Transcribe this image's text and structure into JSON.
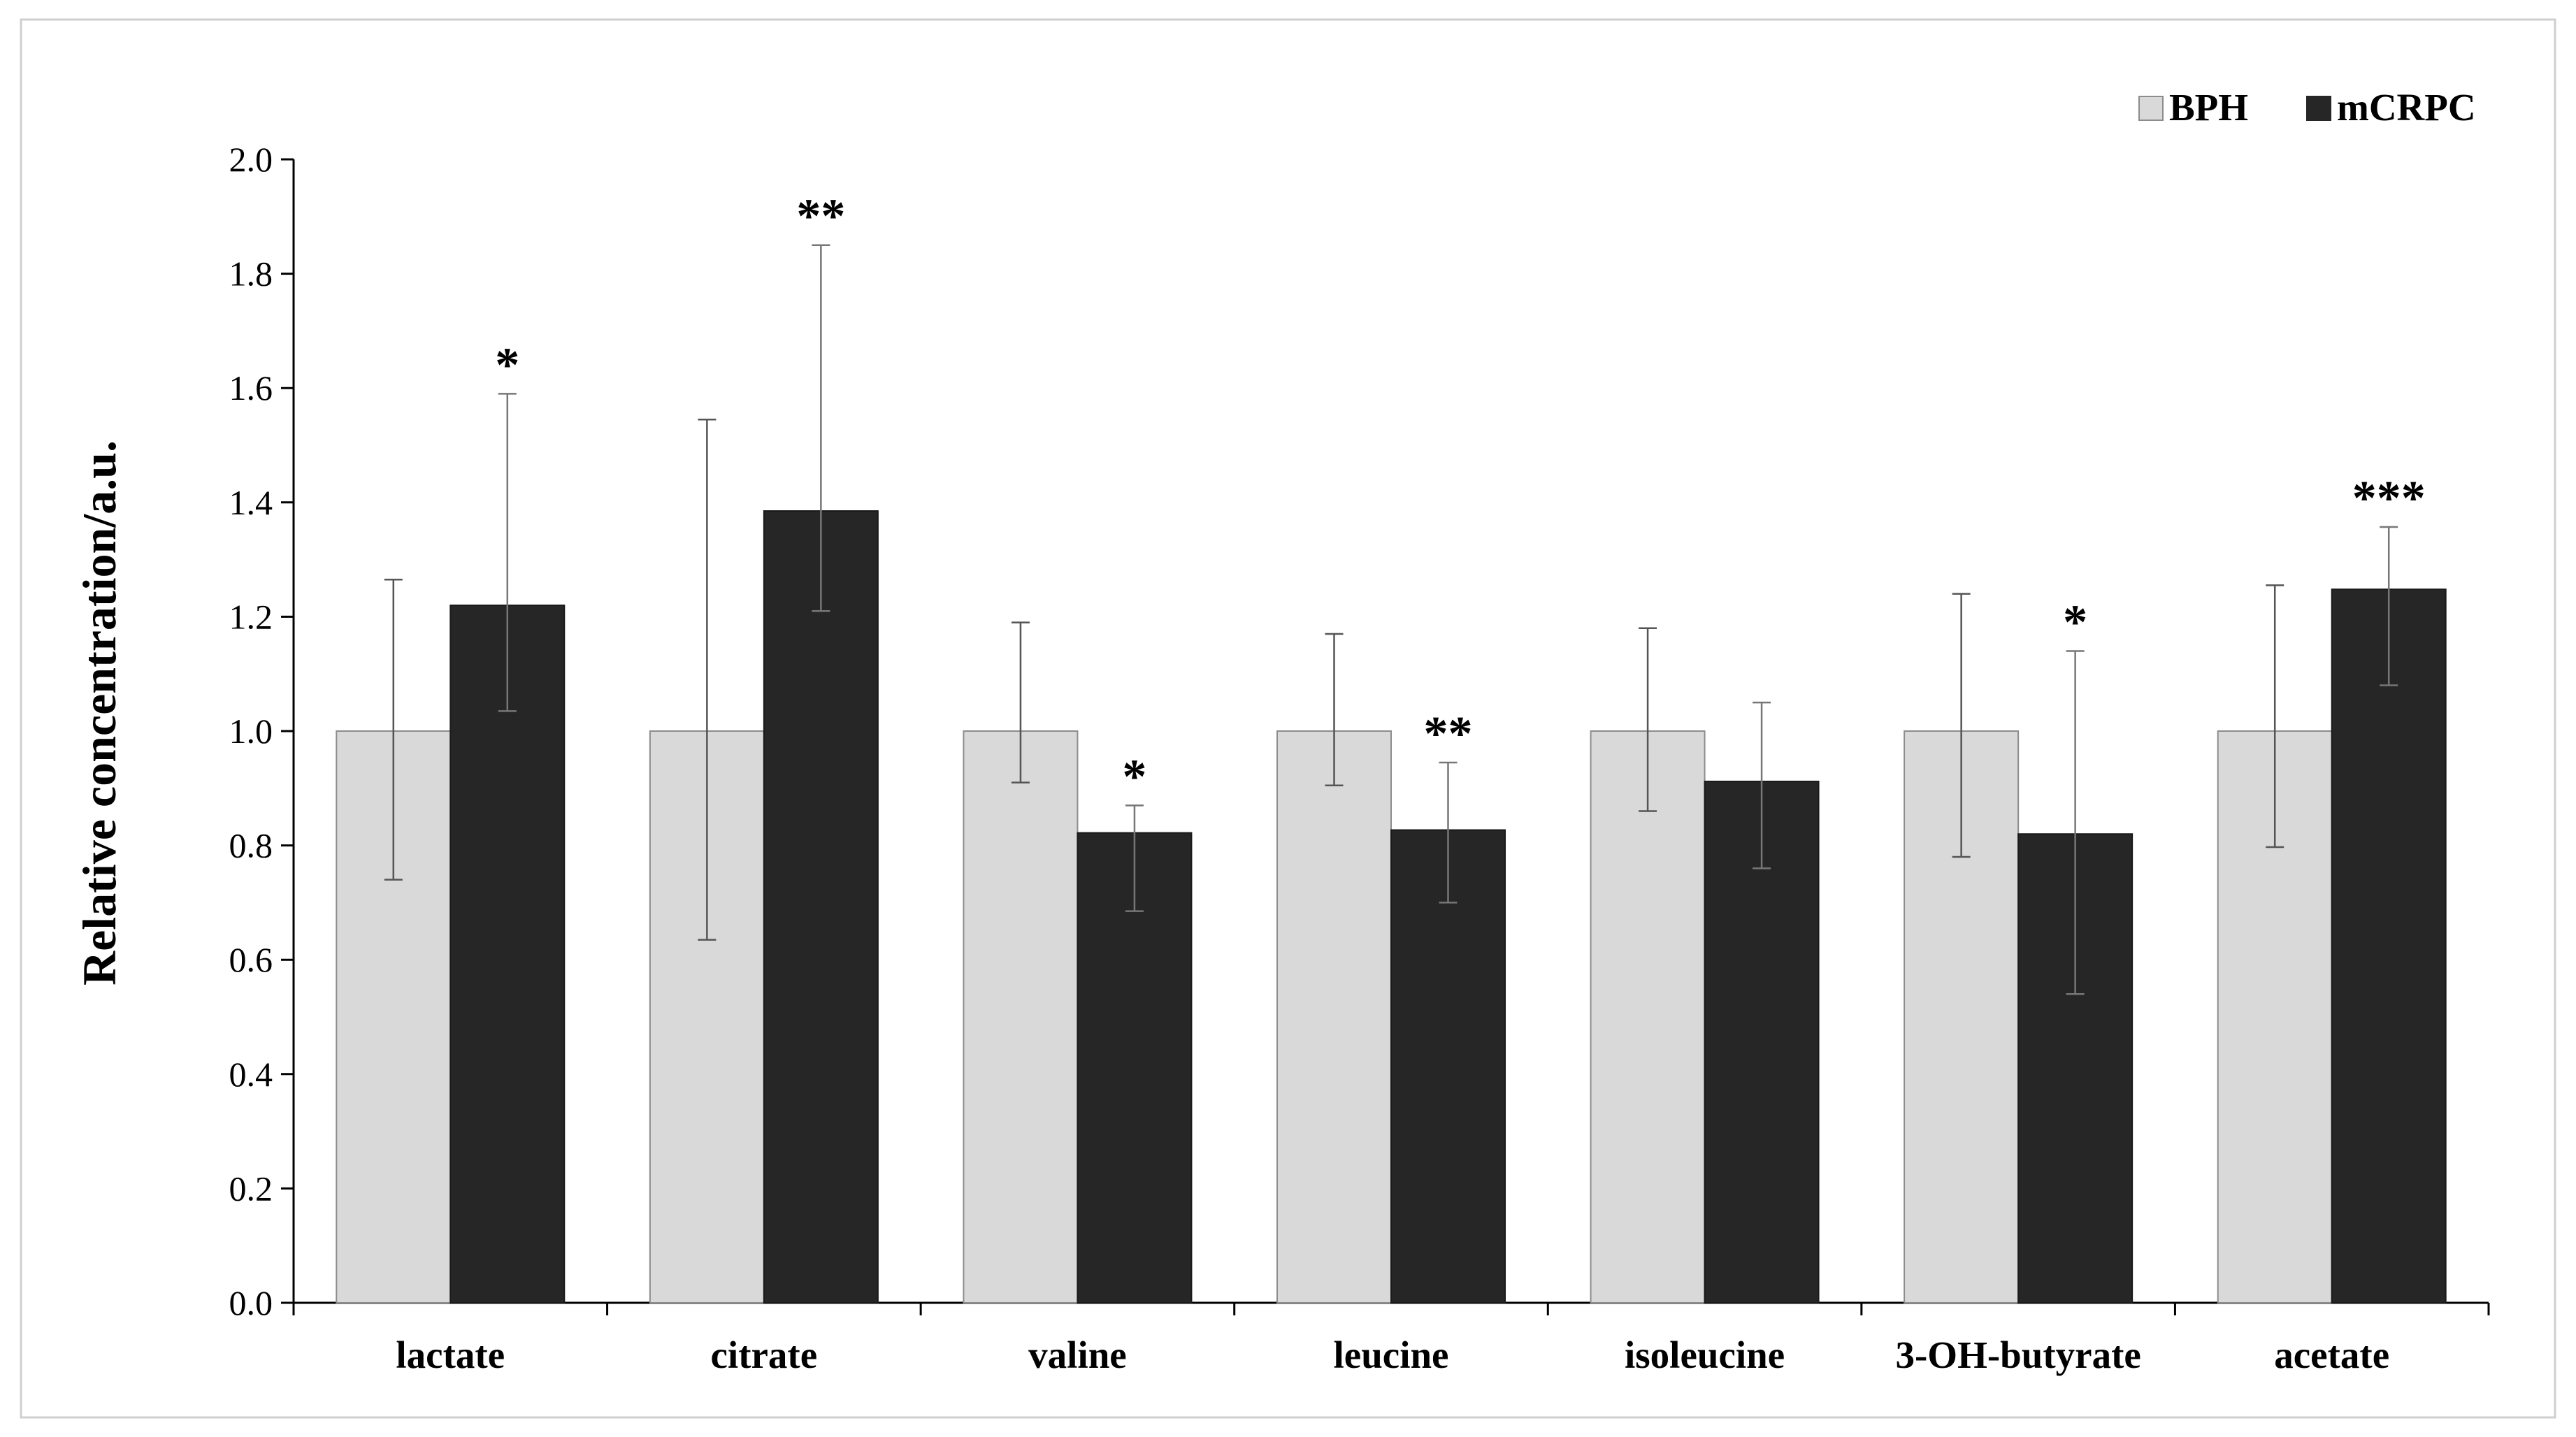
{
  "chart_data": {
    "type": "bar",
    "title": "",
    "xlabel": "",
    "ylabel": "Relative concentration/a.u.",
    "ylim": [
      0,
      2.0
    ],
    "yticks": [
      "0.0",
      "0.2",
      "0.4",
      "0.6",
      "0.8",
      "1.0",
      "1.2",
      "1.4",
      "1.6",
      "1.8",
      "2.0"
    ],
    "categories": [
      "lactate",
      "citrate",
      "valine",
      "leucine",
      "isoleucine",
      "3-OH-butyrate",
      "acetate"
    ],
    "series": [
      {
        "name": "BPH",
        "color": "#d9d9d9",
        "values": [
          1.0,
          1.0,
          1.0,
          1.0,
          1.0,
          1.0,
          1.0
        ],
        "error_low": [
          0.74,
          0.635,
          0.91,
          0.905,
          0.86,
          0.78,
          0.797
        ],
        "error_high": [
          1.265,
          1.545,
          1.19,
          1.17,
          1.18,
          1.24,
          1.255
        ]
      },
      {
        "name": "mCRPC",
        "color": "#262626",
        "values": [
          1.22,
          1.385,
          0.822,
          0.827,
          0.912,
          0.82,
          1.248
        ],
        "error_low": [
          1.035,
          1.21,
          0.685,
          0.7,
          0.76,
          0.54,
          1.08
        ],
        "error_high": [
          1.59,
          1.85,
          0.87,
          0.945,
          1.05,
          1.14,
          1.357
        ]
      }
    ],
    "significance": [
      "*",
      "**",
      "*",
      "**",
      "",
      "*",
      "***"
    ],
    "legend": {
      "position": "top-right",
      "entries": [
        "BPH",
        "mCRPC"
      ]
    },
    "grid": false
  }
}
